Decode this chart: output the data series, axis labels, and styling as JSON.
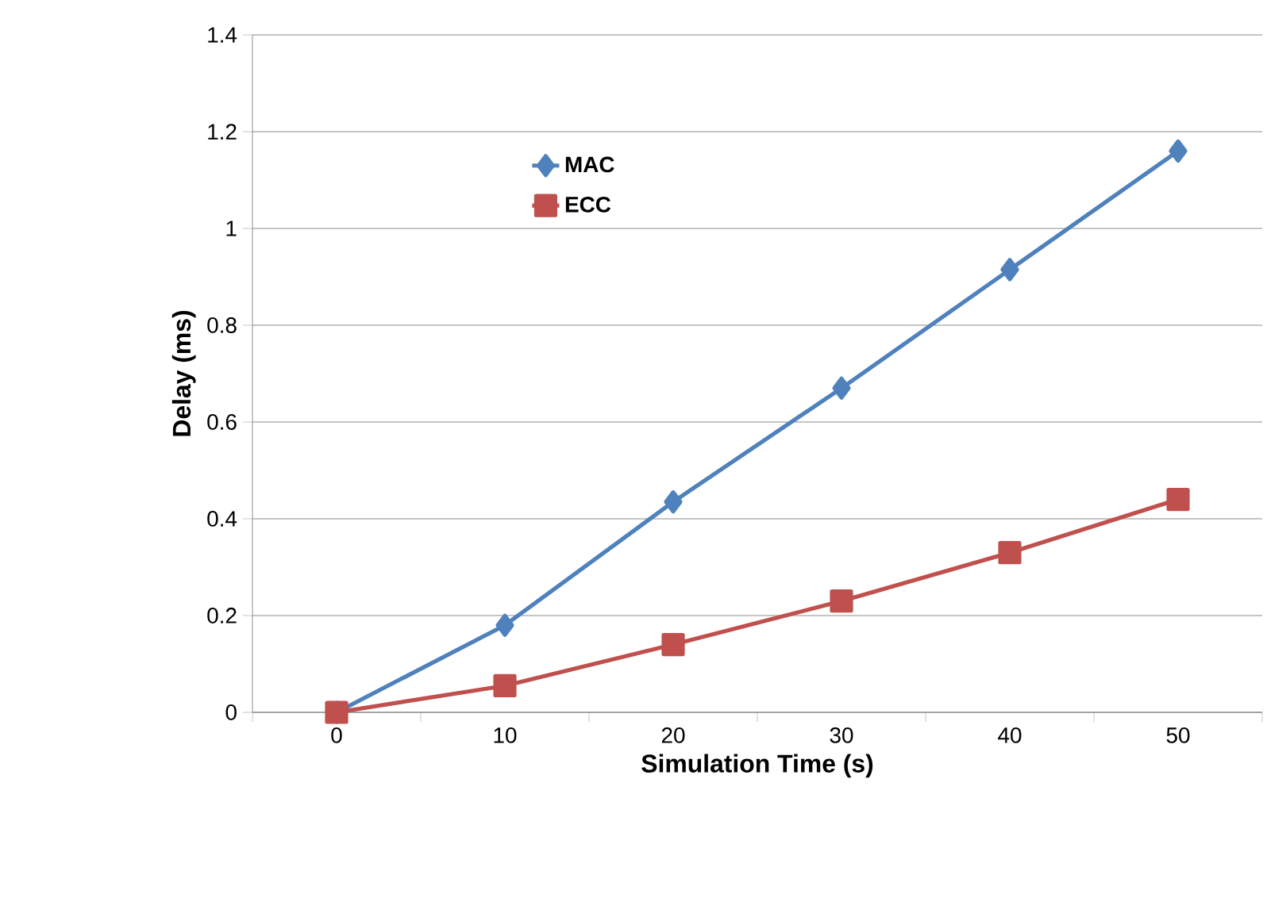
{
  "chart_data": {
    "type": "line",
    "xlabel": "Simulation Time (s)",
    "ylabel": "Delay (ms)",
    "categories": [
      "0",
      "10",
      "20",
      "30",
      "40",
      "50"
    ],
    "series": [
      {
        "name": "MAC",
        "color": "#4f81bd",
        "marker": "diamond",
        "values": [
          0,
          0.18,
          0.435,
          0.67,
          0.915,
          1.16
        ]
      },
      {
        "name": "ECC",
        "color": "#c0504d",
        "marker": "square",
        "values": [
          0,
          0.055,
          0.14,
          0.23,
          0.33,
          0.44
        ]
      }
    ],
    "ylim": [
      0,
      1.4
    ],
    "yticks": [
      0,
      0.2,
      0.4,
      0.6,
      0.8,
      1,
      1.2,
      1.4
    ],
    "grid": "y",
    "legend": "top left"
  }
}
